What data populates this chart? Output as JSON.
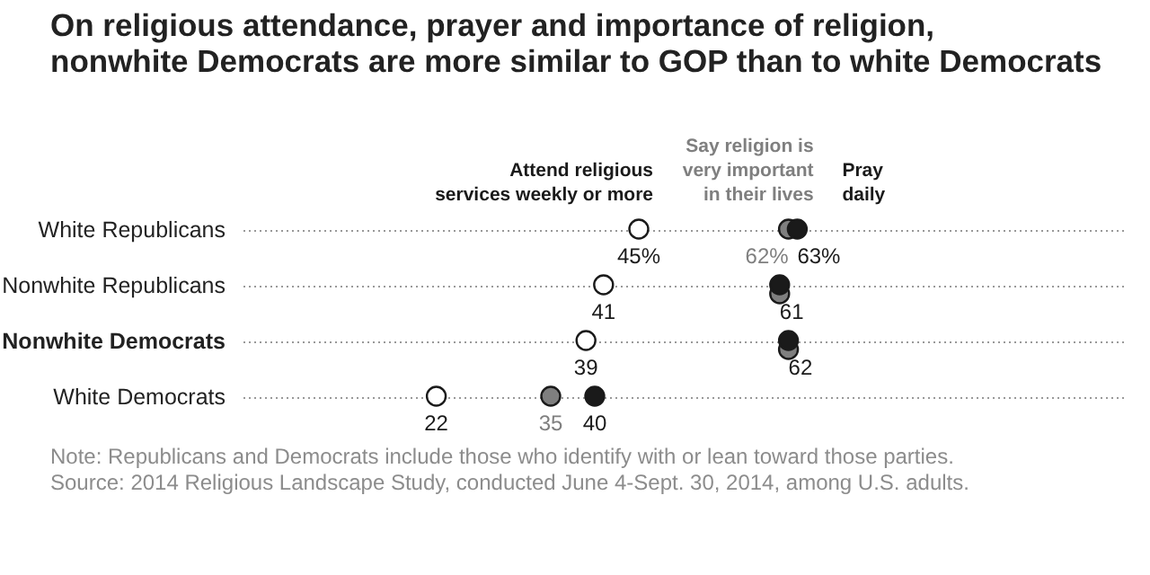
{
  "chart_data": {
    "type": "scatter",
    "orientation": "horizontal",
    "title": "On religious attendance, prayer and importance of religion, nonwhite Democrats are more similar to GOP than to white Democrats",
    "categories": [
      "White Republicans",
      "Nonwhite Republicans",
      "Nonwhite Democrats",
      "White Democrats"
    ],
    "xlim": [
      0,
      100
    ],
    "tick_labels": "y",
    "grid": "y",
    "legend": "top",
    "marker": "circle",
    "series": [
      {
        "name": "Attend religious services weekly or more",
        "color": "#ffffff",
        "values": [
          45,
          41,
          39,
          22
        ],
        "value_labels": [
          "45%",
          "41",
          "39",
          "22"
        ]
      },
      {
        "name": "Say religion is very important in their lives",
        "color": "#7f7f7f",
        "values": [
          62,
          61,
          62,
          35
        ],
        "value_labels": [
          "62%",
          null,
          null,
          "35"
        ]
      },
      {
        "name": "Pray daily",
        "color": "#1a1a1a",
        "values": [
          63,
          61,
          62,
          40
        ],
        "value_labels": [
          "63%",
          "61",
          "62",
          "40"
        ]
      }
    ],
    "annotations": [
      "Note: Republicans and Democrats include those who identify with or lean toward those parties.",
      "Source: 2014 Religious Landscape Study, conducted June 4-Sept. 30, 2014, among U.S. adults."
    ]
  }
}
